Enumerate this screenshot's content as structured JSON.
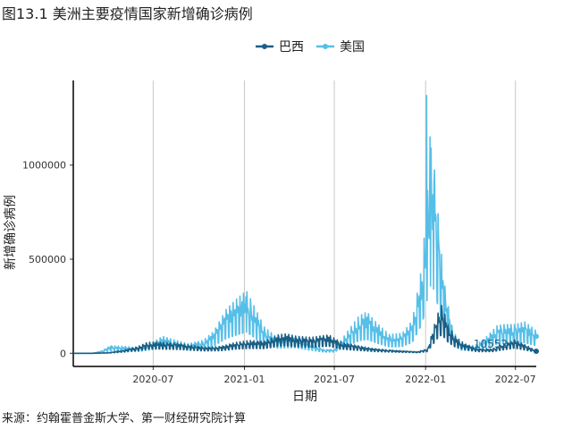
{
  "title": "图13.1 美洲主要疫情国家新增确诊病例",
  "source": "来源：约翰霍普金斯大学、第一财经研究院计算",
  "colors": {
    "brazil": "#1a5f85",
    "usa": "#56bfe8",
    "grid": "#c8c8c8",
    "axis": "#000000"
  },
  "chart_data": {
    "type": "line",
    "xlabel": "日期",
    "ylabel": "新增确诊病例",
    "x_range": [
      "2020-01-22",
      "2022-08-12"
    ],
    "ylim": [
      -70000,
      1450000
    ],
    "x_ticks": [
      "2020-07",
      "2021-01",
      "2021-07",
      "2022-01",
      "2022-07"
    ],
    "x_tick_dates": [
      "2020-07-01",
      "2021-01-01",
      "2021-07-01",
      "2022-01-01",
      "2022-07-01"
    ],
    "y_ticks": [
      0,
      500000,
      1000000
    ],
    "y_tick_labels": [
      "0",
      "500000",
      "1000000"
    ],
    "grid": "vertical-major",
    "legend_position": "top",
    "annotation": {
      "text": "10552",
      "x": "2022-05-12",
      "y": 30000
    },
    "series": [
      {
        "name": "巴西",
        "color": "#1a5f85",
        "points": [
          [
            "2020-01-22",
            0
          ],
          [
            "2020-03-01",
            0
          ],
          [
            "2020-04-01",
            2000
          ],
          [
            "2020-05-01",
            12000
          ],
          [
            "2020-06-01",
            28000
          ],
          [
            "2020-06-20",
            45000
          ],
          [
            "2020-07-15",
            45000
          ],
          [
            "2020-08-15",
            42000
          ],
          [
            "2020-09-15",
            33000
          ],
          [
            "2020-10-15",
            25000
          ],
          [
            "2020-11-15",
            28000
          ],
          [
            "2020-12-15",
            45000
          ],
          [
            "2021-01-10",
            52000
          ],
          [
            "2021-02-10",
            50000
          ],
          [
            "2021-03-10",
            75000
          ],
          [
            "2021-03-25",
            80000
          ],
          [
            "2021-04-15",
            70000
          ],
          [
            "2021-05-15",
            65000
          ],
          [
            "2021-06-20",
            75000
          ],
          [
            "2021-07-15",
            45000
          ],
          [
            "2021-08-15",
            32000
          ],
          [
            "2021-09-15",
            20000
          ],
          [
            "2021-10-15",
            14000
          ],
          [
            "2021-11-15",
            10000
          ],
          [
            "2021-12-15",
            6000
          ],
          [
            "2022-01-05",
            18000
          ],
          [
            "2022-01-15",
            90000
          ],
          [
            "2022-01-25",
            160000
          ],
          [
            "2022-02-03",
            200000
          ],
          [
            "2022-02-15",
            120000
          ],
          [
            "2022-03-01",
            70000
          ],
          [
            "2022-03-20",
            40000
          ],
          [
            "2022-04-15",
            18000
          ],
          [
            "2022-05-15",
            18000
          ],
          [
            "2022-06-10",
            40000
          ],
          [
            "2022-06-30",
            55000
          ],
          [
            "2022-07-20",
            35000
          ],
          [
            "2022-08-12",
            10552
          ]
        ]
      },
      {
        "name": "美国",
        "color": "#56bfe8",
        "points": [
          [
            "2020-01-22",
            0
          ],
          [
            "2020-03-01",
            0
          ],
          [
            "2020-03-20",
            10000
          ],
          [
            "2020-04-05",
            30000
          ],
          [
            "2020-05-01",
            28000
          ],
          [
            "2020-06-01",
            22000
          ],
          [
            "2020-07-01",
            45000
          ],
          [
            "2020-07-20",
            68000
          ],
          [
            "2020-08-15",
            52000
          ],
          [
            "2020-09-10",
            38000
          ],
          [
            "2020-10-10",
            52000
          ],
          [
            "2020-11-01",
            90000
          ],
          [
            "2020-11-25",
            175000
          ],
          [
            "2020-12-15",
            215000
          ],
          [
            "2021-01-05",
            250000
          ],
          [
            "2021-01-20",
            190000
          ],
          [
            "2021-02-10",
            105000
          ],
          [
            "2021-03-10",
            60000
          ],
          [
            "2021-04-10",
            70000
          ],
          [
            "2021-05-10",
            40000
          ],
          [
            "2021-06-10",
            15000
          ],
          [
            "2021-07-01",
            15000
          ],
          [
            "2021-07-25",
            80000
          ],
          [
            "2021-08-20",
            150000
          ],
          [
            "2021-09-05",
            165000
          ],
          [
            "2021-09-25",
            120000
          ],
          [
            "2021-10-20",
            75000
          ],
          [
            "2021-11-15",
            80000
          ],
          [
            "2021-12-05",
            130000
          ],
          [
            "2021-12-25",
            350000
          ],
          [
            "2022-01-05",
            650000
          ],
          [
            "2022-01-12",
            820000
          ],
          [
            "2022-01-20",
            720000
          ],
          [
            "2022-01-30",
            450000
          ],
          [
            "2022-02-10",
            250000
          ],
          [
            "2022-02-25",
            90000
          ],
          [
            "2022-03-15",
            35000
          ],
          [
            "2022-04-10",
            30000
          ],
          [
            "2022-05-01",
            60000
          ],
          [
            "2022-05-25",
            110000
          ],
          [
            "2022-06-10",
            115000
          ],
          [
            "2022-06-30",
            115000
          ],
          [
            "2022-07-20",
            125000
          ],
          [
            "2022-08-12",
            90000
          ]
        ],
        "spikes": [
          [
            "2021-01-04",
            300000
          ],
          [
            "2022-01-03",
            1370000
          ],
          [
            "2022-01-10",
            1150000
          ],
          [
            "2022-01-18",
            900000
          ]
        ]
      }
    ]
  }
}
